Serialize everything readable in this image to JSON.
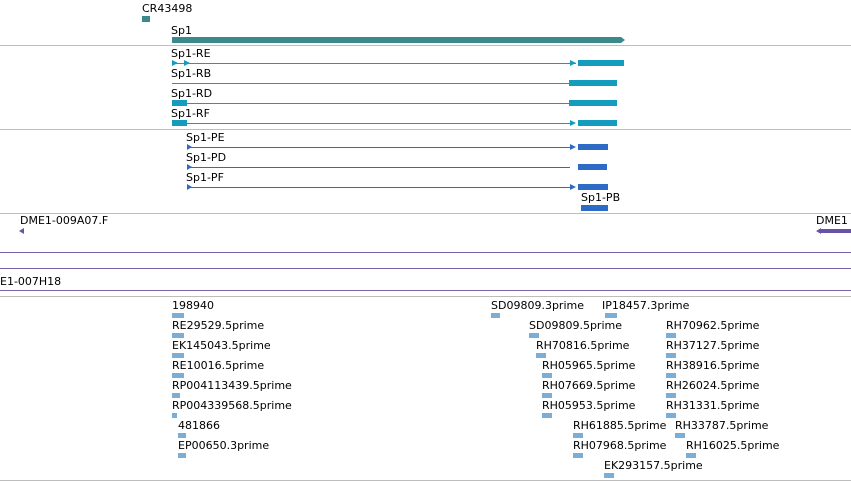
{
  "colors": {
    "gene": "#3a8a8c",
    "transcript": "#139cbd",
    "protein": "#2e6bc6",
    "clone": "#6a53a6",
    "est": "#7aaed6",
    "separator_gray": "#bdbdbd",
    "separator_purple": "#7a62a8"
  },
  "tracks": {
    "genes": {
      "cr43498": "CR43498",
      "sp1": "Sp1"
    },
    "transcripts": [
      "Sp1-RE",
      "Sp1-RB",
      "Sp1-RD",
      "Sp1-RF"
    ],
    "proteins": [
      "Sp1-PE",
      "Sp1-PD",
      "Sp1-PF",
      "Sp1-PB"
    ],
    "clones": {
      "left": "DME1-009A07.F",
      "right": "DME1",
      "bottom": "E1-007H18"
    },
    "ests_left": [
      "198940",
      "RE29529.5prime",
      "EK145043.5prime",
      "RE10016.5prime",
      "RP004113439.5prime",
      "RP004339568.5prime",
      "481866",
      "EP00650.3prime"
    ],
    "ests_mid": [
      "SD09809.3prime",
      "SD09809.5prime",
      "RH70816.5prime",
      "RH05965.5prime",
      "RH07669.5prime",
      "RH05953.5prime",
      "RH61885.5prime",
      "RH07968.5prime"
    ],
    "ests_right": [
      "IP18457.3prime",
      "RH70962.5prime",
      "RH37127.5prime",
      "RH38916.5prime",
      "RH26024.5prime",
      "RH31331.5prime",
      "RH33787.5prime",
      "RH16025.5prime",
      "EK293157.5prime"
    ]
  }
}
